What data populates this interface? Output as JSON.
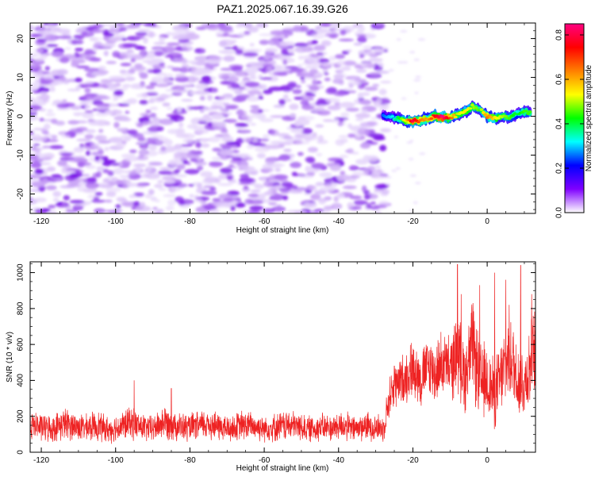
{
  "page_title": "PAZ1.2025.067.16.39.G26",
  "chart_data": [
    {
      "type": "heatmap",
      "title": "",
      "xlabel": "Height of straight line (km)",
      "ylabel": "Frequency (Hz)",
      "xlim": [
        -123,
        13
      ],
      "ylim": [
        -25,
        24
      ],
      "xticks": [
        "-120",
        "-100",
        "-80",
        "-60",
        "-40",
        "-20",
        "0"
      ],
      "yticks": [
        "20",
        "10",
        "0",
        "-10",
        "-20"
      ],
      "colorbar": {
        "label": "Normalized spectral amplitude",
        "range": [
          0.0,
          0.85
        ],
        "ticks": [
          "0.8",
          "0.6",
          "0.4",
          "0.2",
          "0.0"
        ],
        "colors": [
          "#ffffff",
          "#7f00ff",
          "#0000ff",
          "#00ffff",
          "#00ff00",
          "#ffff00",
          "#ff8000",
          "#ff0000",
          "#ff0080"
        ]
      },
      "noise_region": {
        "x_range": [
          -123,
          -27
        ],
        "y_range": [
          -25,
          24
        ],
        "amplitude_range": [
          0.02,
          0.12
        ]
      },
      "signal_trace": {
        "x": [
          -28,
          -26,
          -24,
          -22,
          -20,
          -18,
          -16,
          -14,
          -12,
          -10,
          -8,
          -6,
          -4,
          -2,
          0,
          2,
          4,
          6,
          8,
          10,
          12
        ],
        "y": [
          0.2,
          -0.3,
          -0.6,
          -1.0,
          -1.3,
          -1.0,
          -0.6,
          0.0,
          -0.4,
          -0.3,
          0.3,
          1.2,
          2.5,
          1.8,
          0.0,
          -0.5,
          0.0,
          -0.3,
          0.6,
          1.2,
          1.0
        ],
        "amplitude": [
          0.25,
          0.3,
          0.4,
          0.55,
          0.8,
          0.65,
          0.6,
          0.75,
          0.85,
          0.7,
          0.5,
          0.55,
          0.5,
          0.45,
          0.65,
          0.55,
          0.5,
          0.45,
          0.4,
          0.45,
          0.45
        ]
      }
    },
    {
      "type": "line",
      "title": "",
      "xlabel": "Height of straight line (km)",
      "ylabel": "SNR (10 * v/v)",
      "xlim": [
        -123,
        13
      ],
      "ylim": [
        0,
        1060
      ],
      "xticks": [
        "-120",
        "-100",
        "-80",
        "-60",
        "-40",
        "-20",
        "0"
      ],
      "yticks": [
        "1000",
        "800",
        "600",
        "400",
        "200",
        "0"
      ],
      "series": [
        {
          "color": "#ee2222",
          "x": [
            -123,
            -120,
            -117,
            -114,
            -111,
            -108,
            -105,
            -102,
            -99,
            -96,
            -93,
            -90,
            -87,
            -84,
            -81,
            -78,
            -75,
            -72,
            -69,
            -66,
            -63,
            -60,
            -57,
            -54,
            -51,
            -48,
            -45,
            -42,
            -39,
            -36,
            -33,
            -30,
            -28,
            -26,
            -24,
            -22,
            -20,
            -18,
            -16,
            -14,
            -12,
            -10,
            -8,
            -6,
            -4,
            -2,
            0,
            2,
            4,
            6,
            8,
            10,
            12,
            13
          ],
          "y": [
            150,
            140,
            130,
            160,
            145,
            135,
            150,
            125,
            140,
            165,
            140,
            130,
            170,
            150,
            135,
            145,
            160,
            140,
            130,
            150,
            145,
            135,
            140,
            150,
            145,
            130,
            140,
            135,
            150,
            130,
            145,
            140,
            130,
            330,
            380,
            420,
            470,
            400,
            480,
            440,
            500,
            460,
            560,
            420,
            600,
            380,
            400,
            320,
            430,
            550,
            420,
            380,
            520,
            560
          ],
          "amplitude": [
            70,
            70,
            65,
            80,
            70,
            65,
            75,
            65,
            70,
            80,
            70,
            65,
            85,
            75,
            70,
            70,
            80,
            70,
            65,
            75,
            70,
            65,
            70,
            75,
            70,
            65,
            70,
            65,
            75,
            65,
            70,
            70,
            65,
            110,
            120,
            130,
            140,
            140,
            150,
            150,
            160,
            160,
            200,
            180,
            230,
            200,
            190,
            170,
            190,
            220,
            200,
            180,
            210,
            220
          ],
          "spikes": [
            {
              "x": -95,
              "y": 400
            },
            {
              "x": -85,
              "y": 355
            },
            {
              "x": -25,
              "y": 480
            },
            {
              "x": -19,
              "y": 560
            },
            {
              "x": -8,
              "y": 1045
            },
            {
              "x": -7,
              "y": 880
            },
            {
              "x": -2,
              "y": 930
            },
            {
              "x": 2,
              "y": 1000
            },
            {
              "x": 5,
              "y": 960
            },
            {
              "x": 9,
              "y": 1040
            },
            {
              "x": 12,
              "y": 880
            }
          ]
        }
      ]
    }
  ]
}
